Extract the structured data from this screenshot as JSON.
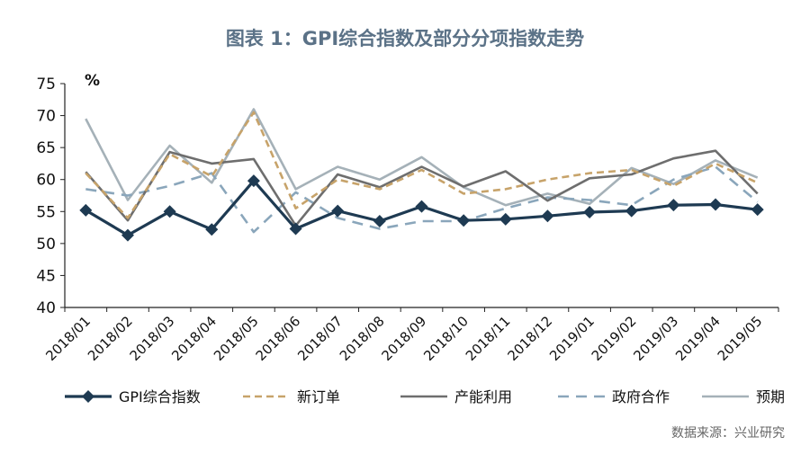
{
  "chart_data": {
    "type": "line",
    "title": "图表 1：GPI综合指数及部分分项指数走势",
    "ylabel": "%",
    "ylim": [
      40,
      75
    ],
    "yticks": [
      40,
      45,
      50,
      55,
      60,
      65,
      70,
      75
    ],
    "grid": false,
    "legend_position": "bottom",
    "categories": [
      "2018/01",
      "2018/02",
      "2018/03",
      "2018/04",
      "2018/05",
      "2018/06",
      "2018/07",
      "2018/08",
      "2018/09",
      "2018/10",
      "2018/11",
      "2018/12",
      "2019/01",
      "2019/02",
      "2019/03",
      "2019/04",
      "2019/05"
    ],
    "series": [
      {
        "name": "GPI综合指数",
        "color": "#1e3a52",
        "style": "solid-marker",
        "values": [
          55.2,
          51.3,
          55.0,
          52.2,
          59.8,
          52.3,
          55.1,
          53.5,
          55.8,
          53.6,
          53.8,
          54.3,
          54.9,
          55.1,
          56.0,
          56.1,
          55.3
        ]
      },
      {
        "name": "新订单",
        "color": "#c7a36a",
        "style": "dash",
        "values": [
          61.0,
          54.0,
          64.0,
          60.5,
          70.5,
          55.5,
          60.0,
          58.5,
          61.5,
          57.8,
          58.5,
          60.0,
          61.0,
          61.5,
          59.0,
          62.5,
          59.5
        ]
      },
      {
        "name": "产能利用",
        "color": "#6e6e6e",
        "style": "solid",
        "values": [
          61.2,
          53.6,
          64.3,
          62.5,
          63.2,
          52.8,
          60.8,
          58.8,
          62.0,
          58.9,
          61.3,
          56.7,
          60.2,
          60.8,
          63.3,
          64.5,
          57.8
        ]
      },
      {
        "name": "政府合作",
        "color": "#8aa6bb",
        "style": "dash",
        "values": [
          58.5,
          57.5,
          59.0,
          61.0,
          51.8,
          58.0,
          54.0,
          52.3,
          53.5,
          53.5,
          55.5,
          57.2,
          56.8,
          56.0,
          60.0,
          62.0,
          56.5
        ]
      },
      {
        "name": "预期",
        "color": "#a5b1b8",
        "style": "solid",
        "values": [
          69.5,
          56.8,
          65.3,
          59.5,
          71.0,
          58.5,
          62.0,
          60.0,
          63.5,
          58.8,
          56.0,
          57.8,
          56.2,
          61.8,
          59.3,
          63.0,
          60.3
        ]
      }
    ],
    "source": "数据来源：兴业研究"
  }
}
